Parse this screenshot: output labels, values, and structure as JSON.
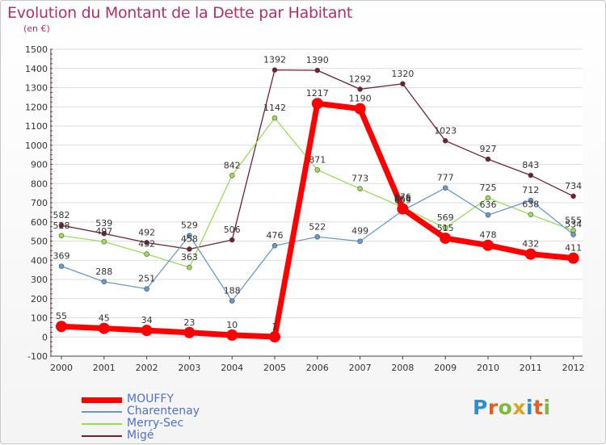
{
  "title": "Evolution du Montant de la Dette par Habitant",
  "unit": "(en €)",
  "logo": "Proxiti",
  "chart_data": {
    "type": "line",
    "title": "Evolution du Montant de la Dette par Habitant",
    "ylabel": "(en €)",
    "x": [
      "2000",
      "2001",
      "2002",
      "2003",
      "2004",
      "2005",
      "2006",
      "2007",
      "2008",
      "2009",
      "2010",
      "2011",
      "2012"
    ],
    "ylim": [
      -100,
      1500
    ],
    "yticks": [
      -100,
      0,
      100,
      200,
      300,
      400,
      500,
      600,
      700,
      800,
      900,
      1000,
      1100,
      1200,
      1300,
      1400,
      1500
    ],
    "grid": "horizontal",
    "legend_position": "bottom-left",
    "series": [
      {
        "name": "MOUFFY",
        "color": "#ff0000",
        "values": [
          55,
          45,
          34,
          23,
          10,
          1,
          1217,
          1190,
          668,
          515,
          478,
          432,
          411
        ],
        "labels": [
          "55",
          "45",
          "34",
          "23",
          "10",
          "1",
          "1217",
          "1190",
          "668",
          "515",
          "478",
          "432",
          "411"
        ]
      },
      {
        "name": "Charentenay",
        "color": "#6699cc",
        "values": [
          369,
          288,
          251,
          529,
          188,
          476,
          522,
          499,
          659,
          777,
          636,
          712,
          534
        ],
        "labels": [
          "369",
          "288",
          "251",
          "529",
          "188",
          "476",
          "522",
          "499",
          "659",
          "777",
          "636",
          "712",
          "534"
        ]
      },
      {
        "name": "Merry-Sec",
        "color": "#99dd55",
        "values": [
          528,
          497,
          432,
          363,
          842,
          1142,
          871,
          773,
          676,
          569,
          725,
          638,
          555
        ],
        "labels": [
          "528",
          "497",
          "432",
          "363",
          "842",
          "1142",
          "871",
          "773",
          "676",
          "569",
          "725",
          "638",
          "555"
        ]
      },
      {
        "name": "Migé",
        "color": "#702030",
        "values": [
          582,
          539,
          492,
          458,
          506,
          1392,
          1390,
          1292,
          1320,
          1023,
          927,
          843,
          734
        ],
        "labels": [
          "582",
          "539",
          "492",
          "458",
          "506",
          "1392",
          "1390",
          "1292",
          "1320",
          "1023",
          "927",
          "843",
          "734"
        ]
      }
    ]
  }
}
